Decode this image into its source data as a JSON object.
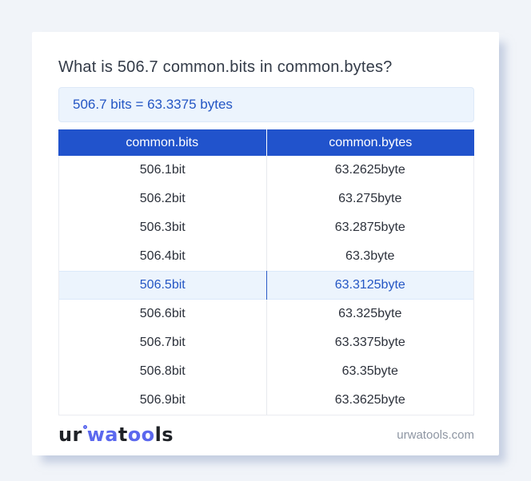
{
  "card": {
    "title": "What is 506.7 common.bits in common.bytes?",
    "result": "506.7 bits = 63.3375 bytes"
  },
  "table": {
    "columns": [
      "common.bits",
      "common.bytes"
    ],
    "rows": [
      {
        "bits": "506.1bit",
        "bytes": "63.2625byte",
        "highlight": false
      },
      {
        "bits": "506.2bit",
        "bytes": "63.275byte",
        "highlight": false
      },
      {
        "bits": "506.3bit",
        "bytes": "63.2875byte",
        "highlight": false
      },
      {
        "bits": "506.4bit",
        "bytes": "63.3byte",
        "highlight": false
      },
      {
        "bits": "506.5bit",
        "bytes": "63.3125byte",
        "highlight": true
      },
      {
        "bits": "506.6bit",
        "bytes": "63.325byte",
        "highlight": false
      },
      {
        "bits": "506.7bit",
        "bytes": "63.3375byte",
        "highlight": false
      },
      {
        "bits": "506.8bit",
        "bytes": "63.35byte",
        "highlight": false
      },
      {
        "bits": "506.9bit",
        "bytes": "63.3625byte",
        "highlight": false
      }
    ]
  },
  "footer": {
    "logo": {
      "dark1": "ur",
      "blue1": "wa",
      "dark2": "t",
      "blue2": "oo",
      "dark3": "ls"
    },
    "site": "urwatools.com"
  },
  "colors": {
    "page_bg": "#f1f4f9",
    "header_blue": "#2153cc",
    "accent_text": "#2456c4",
    "highlight_bg": "#ecf4fd",
    "logo_blue": "#5b68ee"
  }
}
